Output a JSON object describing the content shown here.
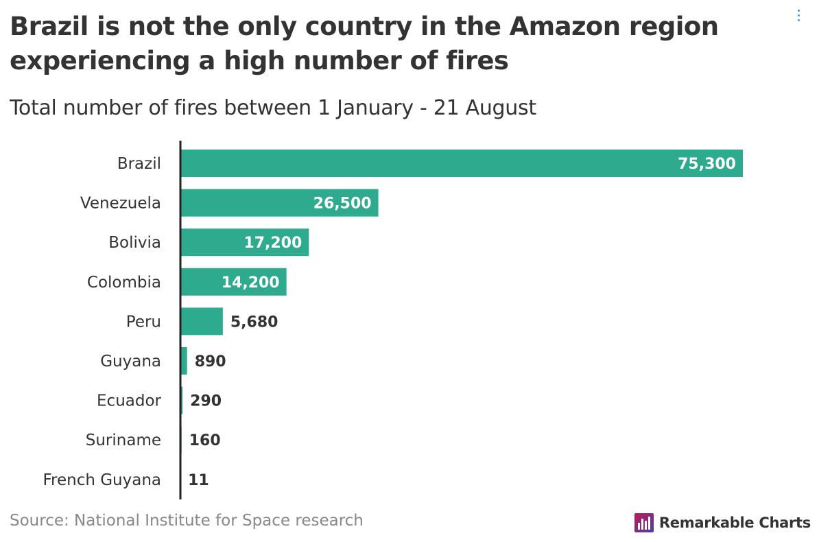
{
  "title": "Brazil is not the only country in the Amazon region experiencing a high number of fires",
  "subtitle": "Total number of fires between 1 January - 21 August",
  "source": "Source: National Institute for Space research",
  "brand": {
    "name": "Remarkable Charts",
    "icon": "bar-chart-logo-icon"
  },
  "menu": {
    "icon": "vertical-ellipsis-icon"
  },
  "colors": {
    "bar": "#2eaa8e",
    "text": "#333333",
    "value_inside": "#ffffff",
    "axis": "#222222",
    "source": "#888888"
  },
  "chart_data": {
    "type": "bar",
    "orientation": "horizontal",
    "title": "Brazil is not the only country in the Amazon region experiencing a high number of fires",
    "subtitle": "Total number of fires between 1 January - 21 August",
    "categories": [
      "Brazil",
      "Venezuela",
      "Bolivia",
      "Colombia",
      "Peru",
      "Guyana",
      "Ecuador",
      "Suriname",
      "French Guyana"
    ],
    "values": [
      75300,
      26500,
      17200,
      14200,
      5680,
      890,
      290,
      160,
      11
    ],
    "value_labels": [
      "75,300",
      "26,500",
      "17,200",
      "14,200",
      "5,680",
      "890",
      "290",
      "160",
      "11"
    ],
    "xlim": [
      0,
      75300
    ],
    "grid": false,
    "legend": "none"
  }
}
